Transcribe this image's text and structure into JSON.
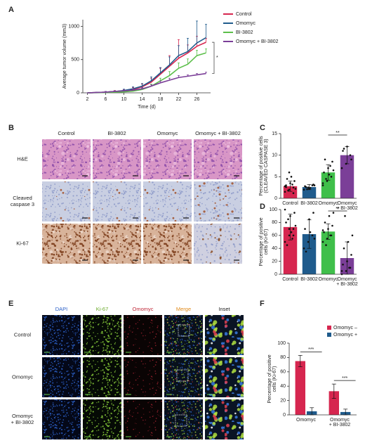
{
  "chart_data": [
    {
      "type": "line",
      "panel": "A",
      "ylabel": "Average tumor volume (mm3)",
      "xlabel": "Time (d)",
      "x": [
        2,
        4,
        6,
        8,
        10,
        12,
        14,
        16,
        18,
        20,
        22,
        24,
        26,
        28
      ],
      "xlim": [
        1,
        29
      ],
      "xticks": [
        2,
        6,
        10,
        14,
        18,
        22,
        26
      ],
      "ylim": [
        0,
        1100
      ],
      "yticks": [
        0,
        500,
        1000
      ],
      "series": [
        {
          "name": "Control",
          "color": "#d6264f",
          "values": [
            0,
            5,
            10,
            20,
            30,
            50,
            90,
            160,
            280,
            400,
            520,
            600,
            700,
            760
          ],
          "errors": [
            0,
            5,
            10,
            15,
            20,
            30,
            40,
            60,
            90,
            160,
            280,
            120,
            150,
            60
          ]
        },
        {
          "name": "Omomyc",
          "color": "#1f5b8c",
          "values": [
            0,
            5,
            10,
            20,
            35,
            60,
            100,
            180,
            300,
            420,
            560,
            620,
            750,
            830
          ],
          "errors": [
            0,
            5,
            10,
            10,
            20,
            30,
            40,
            60,
            80,
            120,
            150,
            200,
            330,
            200
          ]
        },
        {
          "name": "BI-3802",
          "color": "#5cbf4a",
          "values": [
            0,
            2,
            5,
            10,
            15,
            25,
            50,
            100,
            180,
            260,
            370,
            430,
            560,
            600
          ],
          "errors": [
            0,
            2,
            5,
            5,
            10,
            15,
            20,
            30,
            40,
            60,
            80,
            80,
            80,
            60
          ]
        },
        {
          "name": "Omomyc + BI-3802",
          "color": "#7b3f98",
          "values": [
            0,
            5,
            10,
            20,
            30,
            40,
            60,
            100,
            150,
            190,
            230,
            250,
            270,
            290
          ],
          "errors": [
            0,
            5,
            10,
            10,
            15,
            20,
            20,
            20,
            30,
            30,
            30,
            20,
            20,
            20
          ]
        }
      ],
      "annotation": "*"
    },
    {
      "type": "bar",
      "panel": "C",
      "ylabel": [
        "Percentage of positive cells",
        "(CLEAVED CASPASE 3)"
      ],
      "categories": [
        [
          "Control"
        ],
        [
          "BI-3802"
        ],
        [
          "Omomyc"
        ],
        [
          "Omomyc",
          "+ BI-3802"
        ]
      ],
      "colors": [
        "#d6264f",
        "#1f5b8c",
        "#3fbf4a",
        "#7b3f98"
      ],
      "values": [
        2.8,
        2.6,
        6.0,
        10.0
      ],
      "errors": [
        1.2,
        0.6,
        1.8,
        2.0
      ],
      "points": [
        [
          1.5,
          2,
          2.5,
          3,
          3.5,
          4,
          4.5,
          5,
          2.2,
          1.8,
          3.2,
          2.8,
          6,
          1.2,
          2.6
        ],
        [
          2,
          2.5,
          3,
          2.8,
          2.2,
          3.2,
          2.6,
          2.4,
          3,
          2.1
        ],
        [
          3.5,
          4,
          5,
          6,
          7,
          8.5,
          9,
          5.5,
          6.5,
          4.5,
          7.5,
          3
        ],
        [
          7,
          8,
          10,
          11,
          12,
          9,
          11.5
        ]
      ],
      "ylim": [
        0,
        15
      ],
      "yticks": [
        0,
        5,
        10,
        15
      ],
      "annotation": "**"
    },
    {
      "type": "bar",
      "panel": "D",
      "ylabel": [
        "Percentage of positive",
        "cells (Ki-67)"
      ],
      "categories": [
        [
          "Control"
        ],
        [
          "BI-3802"
        ],
        [
          "Omomyc"
        ],
        [
          "Omomyc",
          "+ BI-3802"
        ]
      ],
      "colors": [
        "#d6264f",
        "#1f5b8c",
        "#3fbf4a",
        "#7b3f98"
      ],
      "values": [
        73,
        62,
        66,
        25
      ],
      "errors": [
        20,
        22,
        12,
        25
      ],
      "points": [
        [
          50,
          60,
          70,
          80,
          90,
          95,
          45,
          65,
          75,
          85,
          55,
          100,
          70,
          60
        ],
        [
          40,
          50,
          60,
          70,
          85,
          95,
          35,
          65,
          55
        ],
        [
          50,
          55,
          60,
          65,
          70,
          75,
          80,
          90,
          95,
          45,
          60,
          68
        ],
        [
          0,
          5,
          10,
          15,
          20,
          30,
          40,
          50,
          60,
          90,
          10,
          5
        ]
      ],
      "ylim": [
        0,
        100
      ],
      "yticks": [
        0,
        20,
        40,
        60,
        80,
        100
      ],
      "annotation": "**"
    },
    {
      "type": "grouped_bar",
      "panel": "F",
      "ylabel": [
        "Percentage of positive",
        "cells (Ki-67)"
      ],
      "categories": [
        [
          "Omomyc"
        ],
        [
          "Omomyc",
          "+ BI-3802"
        ]
      ],
      "series": [
        {
          "name": "Omomyc –",
          "color": "#d6264f",
          "values": [
            75,
            33
          ],
          "errors": [
            8,
            10
          ]
        },
        {
          "name": "Omomyc +",
          "color": "#1f5b8c",
          "values": [
            5,
            4
          ],
          "errors": [
            5,
            4
          ]
        }
      ],
      "ylim": [
        0,
        100
      ],
      "yticks": [
        0,
        20,
        40,
        60,
        80,
        100
      ],
      "annotations": [
        "***",
        "***"
      ],
      "legend": "upper right"
    }
  ],
  "panel_b": {
    "panel": "B",
    "columns": [
      "Control",
      "BI-3802",
      "Omomyc",
      "Omomyc + BI-3802"
    ],
    "rows": [
      [
        "H&E"
      ],
      [
        "Cleaved",
        "caspase 3"
      ],
      [
        "Ki-67"
      ]
    ]
  },
  "panel_e": {
    "panel": "E",
    "columns": [
      "DAPI",
      "Ki-67",
      "Omomyc",
      "Merge",
      "Inset"
    ],
    "rows": [
      [
        "Control"
      ],
      [
        "Omomyc"
      ],
      [
        "Omomyc",
        "+ BI-3802"
      ]
    ]
  }
}
